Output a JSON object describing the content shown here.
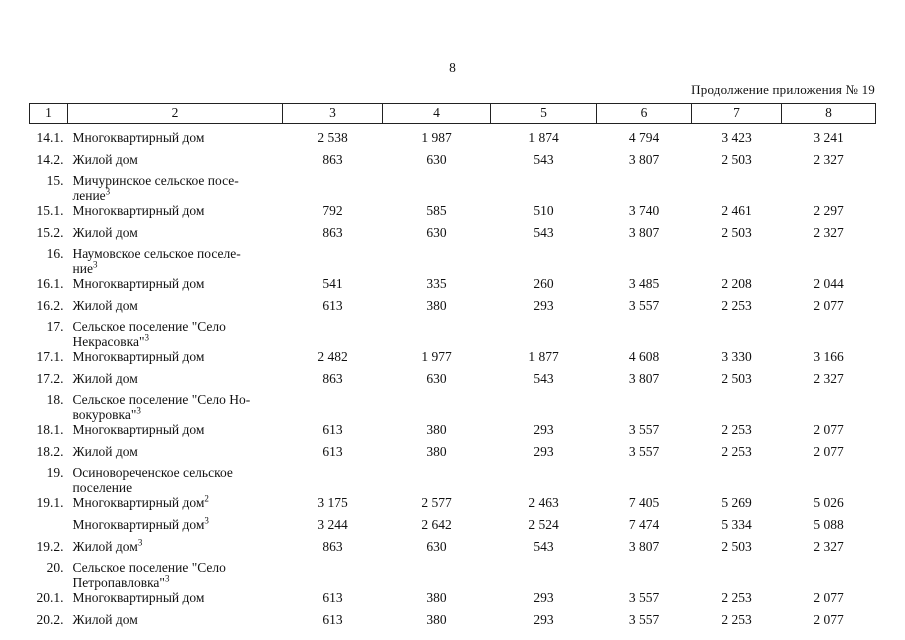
{
  "page": {
    "number": "8",
    "continuation": "Продолжение приложения № 19"
  },
  "table": {
    "columns": [
      "1",
      "2",
      "3",
      "4",
      "5",
      "6",
      "7",
      "8"
    ],
    "rows": [
      {
        "num": "14.1.",
        "label": "Многоквартирный дом",
        "sup": "",
        "values": [
          "2 538",
          "1 987",
          "1 874",
          "4 794",
          "3 423",
          "3 241"
        ]
      },
      {
        "num": "14.2.",
        "label": "Жилой дом",
        "sup": "",
        "values": [
          "863",
          "630",
          "543",
          "3 807",
          "2 503",
          "2 327"
        ]
      },
      {
        "num": "15.",
        "heading": true,
        "lines": [
          "Мичуринское сельское посе-",
          "ление"
        ],
        "sup": "3"
      },
      {
        "num": "15.1.",
        "label": "Многоквартирный дом",
        "sup": "",
        "values": [
          "792",
          "585",
          "510",
          "3 740",
          "2 461",
          "2 297"
        ]
      },
      {
        "num": "15.2.",
        "label": "Жилой дом",
        "sup": "",
        "values": [
          "863",
          "630",
          "543",
          "3 807",
          "2 503",
          "2 327"
        ]
      },
      {
        "num": "16.",
        "heading": true,
        "lines": [
          "Наумовское сельское поселе-",
          "ние"
        ],
        "sup": "3"
      },
      {
        "num": "16.1.",
        "label": "Многоквартирный дом",
        "sup": "",
        "values": [
          "541",
          "335",
          "260",
          "3 485",
          "2 208",
          "2 044"
        ]
      },
      {
        "num": "16.2.",
        "label": "Жилой дом",
        "sup": "",
        "values": [
          "613",
          "380",
          "293",
          "3 557",
          "2 253",
          "2 077"
        ]
      },
      {
        "num": "17.",
        "heading": true,
        "lines": [
          "Сельское поселение \"Село",
          "Некрасовка\""
        ],
        "sup": "3"
      },
      {
        "num": "17.1.",
        "label": "Многоквартирный дом",
        "sup": "",
        "values": [
          "2 482",
          "1 977",
          "1 877",
          "4 608",
          "3 330",
          "3 166"
        ]
      },
      {
        "num": "17.2.",
        "label": "Жилой дом",
        "sup": "",
        "values": [
          "863",
          "630",
          "543",
          "3 807",
          "2 503",
          "2 327"
        ]
      },
      {
        "num": "18.",
        "heading": true,
        "lines": [
          "Сельское поселение \"Село Но-",
          "вокуровка\""
        ],
        "sup": "3"
      },
      {
        "num": "18.1.",
        "label": "Многоквартирный дом",
        "sup": "",
        "values": [
          "613",
          "380",
          "293",
          "3 557",
          "2 253",
          "2 077"
        ]
      },
      {
        "num": "18.2.",
        "label": "Жилой дом",
        "sup": "",
        "values": [
          "613",
          "380",
          "293",
          "3 557",
          "2 253",
          "2 077"
        ]
      },
      {
        "num": "19.",
        "heading": true,
        "lines": [
          "Осиновореченское сельское",
          "поселение"
        ],
        "sup": ""
      },
      {
        "num": "19.1.",
        "label": "Многоквартирный дом",
        "sup": "2",
        "values": [
          "3 175",
          "2 577",
          "2 463",
          "7 405",
          "5 269",
          "5 026"
        ]
      },
      {
        "num": "",
        "label": "Многоквартирный дом",
        "sup": "3",
        "values": [
          "3 244",
          "2 642",
          "2 524",
          "7 474",
          "5 334",
          "5 088"
        ]
      },
      {
        "num": "19.2.",
        "label": "Жилой дом",
        "sup": "3",
        "values": [
          "863",
          "630",
          "543",
          "3 807",
          "2 503",
          "2 327"
        ]
      },
      {
        "num": "20.",
        "heading": true,
        "lines": [
          "Сельское поселение \"Село",
          "Петропавловка\""
        ],
        "sup": "3"
      },
      {
        "num": "20.1.",
        "label": "Многоквартирный дом",
        "sup": "",
        "values": [
          "613",
          "380",
          "293",
          "3 557",
          "2 253",
          "2 077"
        ]
      },
      {
        "num": "20.2.",
        "label": "Жилой дом",
        "sup": "",
        "values": [
          "613",
          "380",
          "293",
          "3 557",
          "2 253",
          "2 077"
        ]
      }
    ]
  }
}
